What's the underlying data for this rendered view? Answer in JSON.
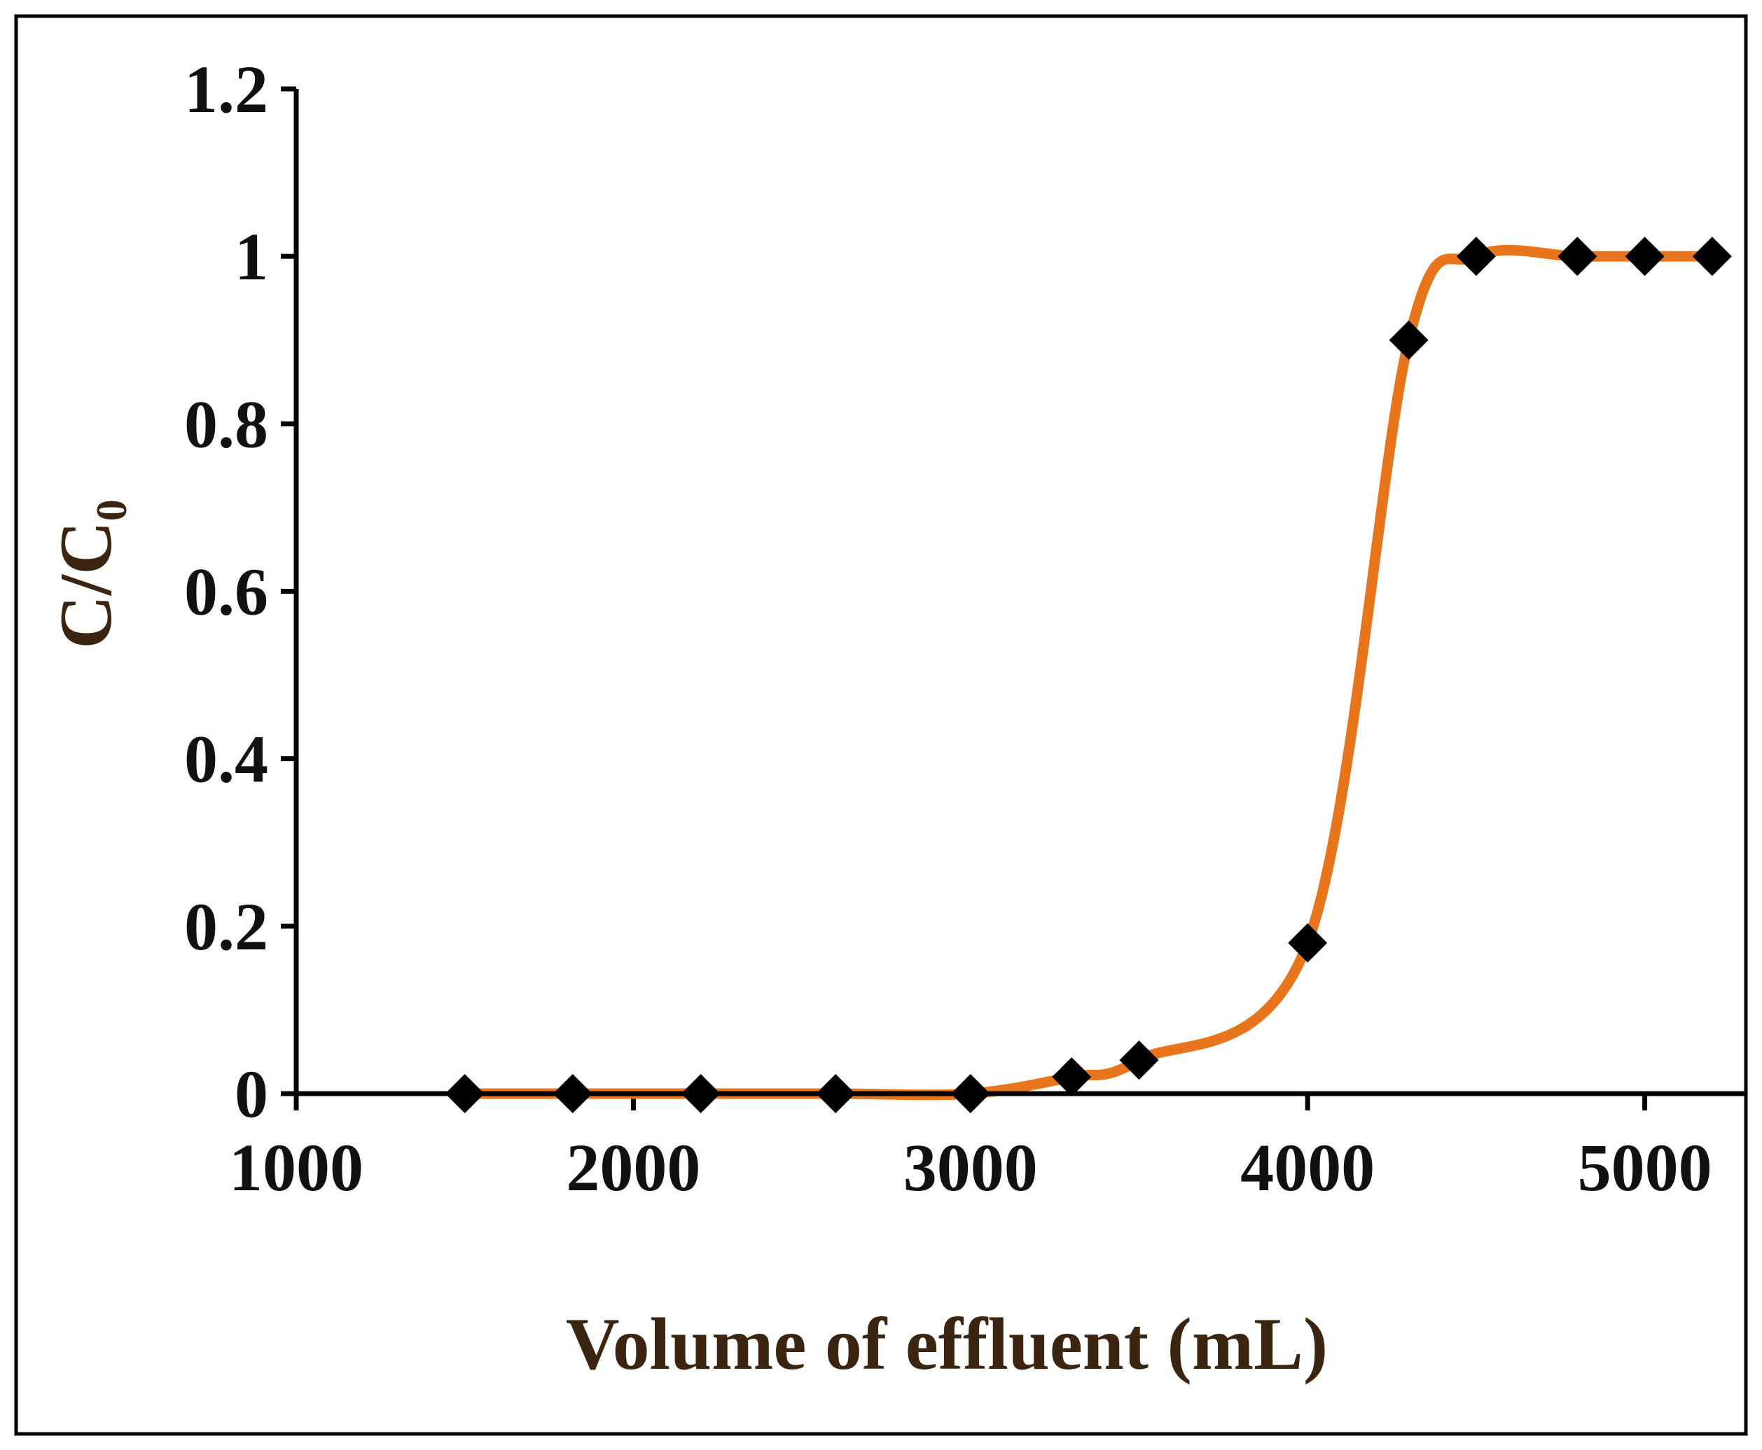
{
  "chart_data": {
    "type": "scatter",
    "title": "",
    "xlabel": "Volume of effluent (mL)",
    "ylabel": "C/C",
    "ylabel_subscript": "0",
    "xlim": [
      1000,
      5300
    ],
    "ylim": [
      0,
      1.2
    ],
    "x_ticks": [
      1000,
      2000,
      3000,
      4000,
      5000
    ],
    "x_tick_labels": [
      "1000",
      "2000",
      "3000",
      "4000",
      "5000"
    ],
    "y_ticks": [
      0,
      0.2,
      0.4,
      0.6,
      0.8,
      1.0,
      1.2
    ],
    "y_tick_labels": [
      "0",
      "0.2",
      "0.4",
      "0.6",
      "0.8",
      "1",
      "1.2"
    ],
    "grid": false,
    "legend": "none",
    "series": [
      {
        "name": "C/C0",
        "marker": "diamond",
        "line": "smooth",
        "x": [
          1500,
          1820,
          2200,
          2600,
          3000,
          3300,
          3500,
          4000,
          4300,
          4500,
          4800,
          5000,
          5200
        ],
        "y": [
          0,
          0,
          0,
          0,
          0,
          0.02,
          0.04,
          0.18,
          0.9,
          1.0,
          1.0,
          1.0,
          1.0
        ]
      }
    ],
    "colors": {
      "curve": "#E8741C",
      "marker": "#000000",
      "axis": "#000000",
      "axis_title": "#3b2410"
    }
  }
}
